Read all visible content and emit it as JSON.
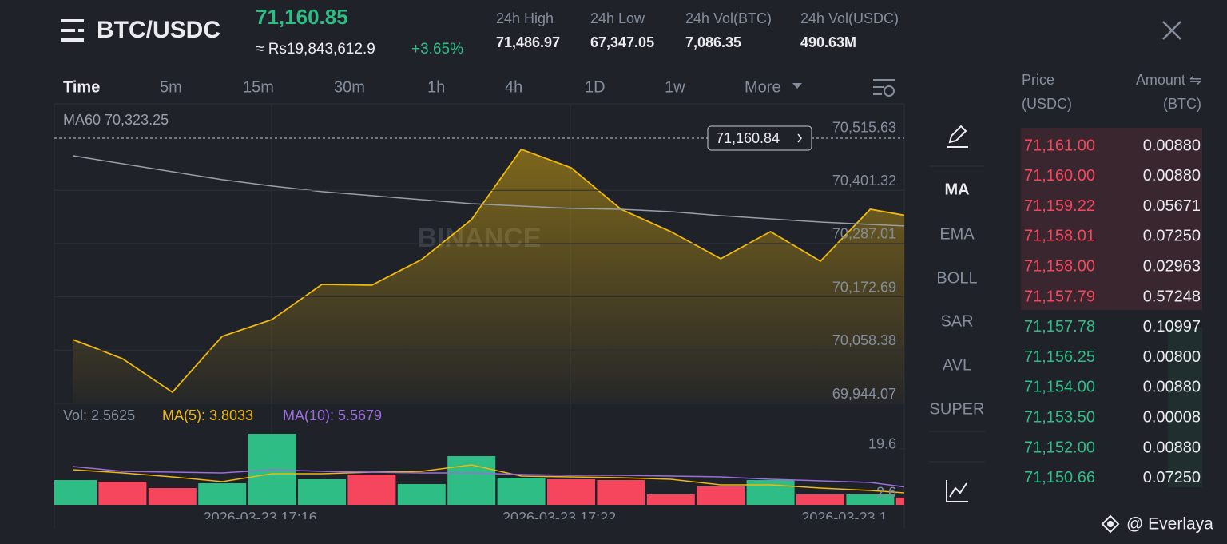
{
  "header": {
    "pair": "BTC/USDC",
    "price": "71,160.85",
    "fiat_price": "≈ Rs19,843,612.9",
    "change": "+3.65%",
    "stats": [
      {
        "label": "24h High",
        "value": "71,486.97"
      },
      {
        "label": "24h Low",
        "value": "67,347.05"
      },
      {
        "label": "24h Vol(BTC)",
        "value": "7,086.35"
      },
      {
        "label": "24h Vol(USDC)",
        "value": "490.63M"
      }
    ]
  },
  "intervals": [
    "Time",
    "5m",
    "15m",
    "30m",
    "1h",
    "4h",
    "1D",
    "1w",
    "More"
  ],
  "indicators": [
    "MA",
    "EMA",
    "BOLL",
    "SAR",
    "AVL",
    "SUPER"
  ],
  "order_book": {
    "price_header": [
      "Price",
      "(USDC)"
    ],
    "amount_header": [
      "Amount ⇋",
      "(BTC)"
    ],
    "asks": [
      [
        "71,161.00",
        "0.00880"
      ],
      [
        "71,160.00",
        "0.00880"
      ],
      [
        "71,159.22",
        "0.05671"
      ],
      [
        "71,158.01",
        "0.07250"
      ],
      [
        "71,158.00",
        "0.02963"
      ],
      [
        "71,157.79",
        "0.57248"
      ]
    ],
    "bids": [
      [
        "71,157.78",
        "0.10997"
      ],
      [
        "71,156.25",
        "0.00800"
      ],
      [
        "71,154.00",
        "0.00880"
      ],
      [
        "71,153.50",
        "0.00008"
      ],
      [
        "71,152.00",
        "0.00880"
      ],
      [
        "71,150.66",
        "0.07250"
      ]
    ]
  },
  "watermark": "BINANCE",
  "credit": "@ Everlaya",
  "chart_data": [
    {
      "type": "line",
      "last_price_label": "71,160.84",
      "ylim": [
        69944.07,
        70586.8
      ],
      "yticks": [
        {
          "value": 70515.63,
          "label": "70,515.63"
        },
        {
          "value": 70401.32,
          "label": "70,401.32"
        },
        {
          "value": 70287.01,
          "label": "70,287.01"
        },
        {
          "value": 70172.69,
          "label": "70,172.69"
        },
        {
          "value": 70058.38,
          "label": "70,058.38"
        },
        {
          "value": 69944.07,
          "label": "69,944.07"
        }
      ],
      "grid": true,
      "series": [
        {
          "color": "#f0b90b",
          "area": true,
          "values": [
            70081.2,
            70040.1,
            69968.1,
            70088.1,
            70124.1,
            70199.5,
            70197.8,
            70252.7,
            70338.3,
            70489.2,
            70449.7,
            70360.6,
            70312.6,
            70254.4,
            70312.6,
            70249.2,
            70360.6,
            70341.8
          ]
        },
        {
          "name": "MA60 70,323.25",
          "color": "#9a9ea6",
          "values": [
            70475.5,
            70458.3,
            70441.2,
            70424.1,
            70410.4,
            70398.4,
            70389.8,
            70381.2,
            70372.6,
            70367.5,
            70362.4,
            70360.6,
            70355.5,
            70346.9,
            70340.0,
            70333.2,
            70328.0,
            70323.3
          ]
        }
      ]
    },
    {
      "type": "bar",
      "categories": [
        null,
        null,
        null,
        null,
        "2026-03-23 17:16",
        null,
        null,
        null,
        null,
        null,
        "2026-03-23 17:22",
        null,
        null,
        null,
        null,
        null,
        "2026-03-23 1",
        null
      ],
      "ylim": [
        0,
        25.64
      ],
      "yticks": [
        19.6,
        2.6
      ],
      "series": [
        {
          "name": "Vol: 2.5625",
          "colors": [
            "#2ebd85",
            "#f6465d",
            "#f6465d",
            "#2ebd85",
            "#2ebd85",
            "#2ebd85",
            "#f6465d",
            "#2ebd85",
            "#2ebd85",
            "#2ebd85",
            "#f6465d",
            "#f6465d",
            "#f6465d",
            "#f6465d",
            "#2ebd85",
            "#f6465d",
            "#2ebd85",
            "#f6465d"
          ],
          "color": "#848e9c",
          "values": [
            8.64,
            8.08,
            5.85,
            7.52,
            24.8,
            8.92,
            10.59,
            7.25,
            17.0,
            9.48,
            8.92,
            8.64,
            3.62,
            6.41,
            8.64,
            3.62,
            3.62,
            2.56
          ]
        },
        {
          "name": "MA(5): 3.8033",
          "color": "#f0b90b",
          "type": "line",
          "values": [
            12.26,
            11.15,
            9.75,
            8.08,
            10.87,
            10.87,
            11.43,
            11.71,
            13.94,
            10.03,
            9.75,
            9.48,
            8.92,
            6.97,
            6.97,
            5.85,
            5.02,
            3.8
          ]
        },
        {
          "name": "MA(10): 5.5679",
          "color": "#9c6ede",
          "type": "line",
          "values": [
            13.38,
            11.71,
            11.43,
            11.15,
            12.26,
            11.71,
            11.43,
            11.15,
            11.15,
            10.59,
            10.31,
            10.31,
            10.03,
            9.75,
            8.92,
            8.36,
            7.8,
            5.57
          ]
        }
      ]
    }
  ]
}
